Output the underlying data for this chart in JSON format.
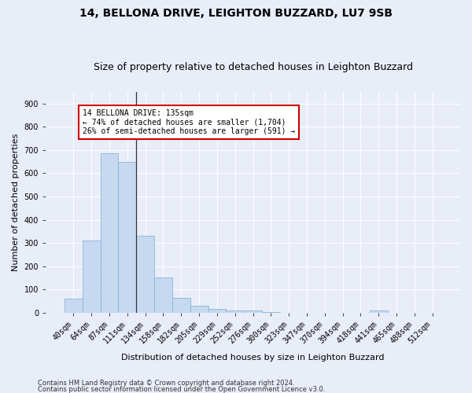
{
  "title1": "14, BELLONA DRIVE, LEIGHTON BUZZARD, LU7 9SB",
  "title2": "Size of property relative to detached houses in Leighton Buzzard",
  "xlabel": "Distribution of detached houses by size in Leighton Buzzard",
  "ylabel": "Number of detached properties",
  "categories": [
    "40sqm",
    "64sqm",
    "87sqm",
    "111sqm",
    "134sqm",
    "158sqm",
    "182sqm",
    "205sqm",
    "229sqm",
    "252sqm",
    "276sqm",
    "300sqm",
    "323sqm",
    "347sqm",
    "370sqm",
    "394sqm",
    "418sqm",
    "441sqm",
    "465sqm",
    "488sqm",
    "512sqm"
  ],
  "values": [
    62,
    310,
    685,
    650,
    330,
    150,
    65,
    30,
    17,
    10,
    8,
    3,
    1,
    0,
    0,
    0,
    0,
    8,
    0,
    0,
    0
  ],
  "bar_color": "#c6d9f0",
  "bar_edge_color": "#8ab4d8",
  "vline_x_index": 3.5,
  "vline_color": "#333333",
  "annotation_text": "14 BELLONA DRIVE: 135sqm\n← 74% of detached houses are smaller (1,704)\n26% of semi-detached houses are larger (591) →",
  "annotation_box_color": "#ffffff",
  "annotation_box_edge_color": "#cc0000",
  "ylim": [
    0,
    950
  ],
  "yticks": [
    0,
    100,
    200,
    300,
    400,
    500,
    600,
    700,
    800,
    900
  ],
  "footer1": "Contains HM Land Registry data © Crown copyright and database right 2024.",
  "footer2": "Contains public sector information licensed under the Open Government Licence v3.0.",
  "bg_color": "#e8edf8",
  "plot_bg_color": "#e8edf8",
  "title1_fontsize": 10,
  "title2_fontsize": 9,
  "tick_fontsize": 7,
  "label_fontsize": 8,
  "footer_fontsize": 6
}
